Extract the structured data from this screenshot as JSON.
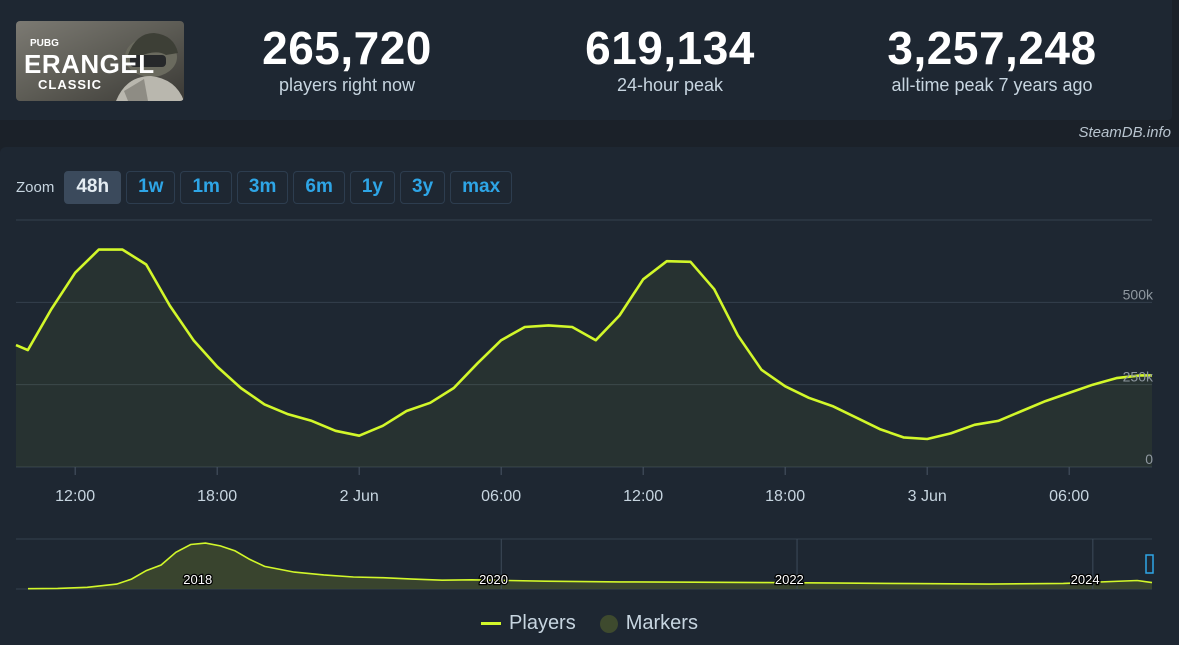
{
  "colors": {
    "accent": "#d2f72a",
    "link": "#2ea5e6",
    "background": "#1b2129",
    "panel": "#1e2732",
    "grid": "#3a4654",
    "marker": "#3e4a2e"
  },
  "game": {
    "logo_brand": "PUBG",
    "logo_title": "ERANGEL",
    "logo_subtitle": "CLASSIC"
  },
  "stats": [
    {
      "value": "265,720",
      "label": "players right now"
    },
    {
      "value": "619,134",
      "label": "24-hour peak"
    },
    {
      "value": "3,257,248",
      "label": "all-time peak 7 years ago"
    }
  ],
  "credit": "SteamDB.info",
  "zoom": {
    "label": "Zoom",
    "options": [
      "48h",
      "1w",
      "1m",
      "3m",
      "6m",
      "1y",
      "3y",
      "max"
    ],
    "selected": "48h"
  },
  "legend": {
    "players": "Players",
    "markers": "Markers"
  },
  "chart_data": [
    {
      "type": "line",
      "series": [
        {
          "name": "Players",
          "color": "#d2f72a",
          "x": [
            9.5,
            10,
            11,
            12,
            13,
            14,
            15,
            16,
            17,
            18,
            19,
            20,
            21,
            22,
            23,
            24,
            25,
            26,
            27,
            28,
            29,
            30,
            31,
            32,
            33,
            34,
            35,
            36,
            37,
            38,
            39,
            40,
            41,
            42,
            43,
            44,
            45,
            46,
            47,
            48,
            49,
            50,
            51,
            52,
            53,
            54,
            55,
            56,
            57,
            57.5
          ],
          "y": [
            370000,
            355000,
            480000,
            590000,
            660000,
            660000,
            615000,
            490000,
            385000,
            305000,
            240000,
            190000,
            160000,
            140000,
            110000,
            95000,
            125000,
            170000,
            195000,
            240000,
            315000,
            385000,
            425000,
            430000,
            425000,
            385000,
            460000,
            570000,
            625000,
            623000,
            540000,
            400000,
            295000,
            245000,
            210000,
            185000,
            150000,
            115000,
            90000,
            85000,
            102000,
            128000,
            140000,
            170000,
            200000,
            225000,
            250000,
            270000,
            278000,
            278000
          ]
        }
      ],
      "x_ticks": [
        "12:00",
        "18:00",
        "2 Jun",
        "06:00",
        "12:00",
        "18:00",
        "3 Jun",
        "06:00"
      ],
      "y_ticks": [
        "0",
        "250k",
        "500k"
      ],
      "ylim": [
        0,
        750000
      ],
      "grid": true
    },
    {
      "type": "area",
      "series": [
        {
          "name": "Players",
          "x": [
            2017.0,
            2017.2,
            2017.4,
            2017.6,
            2017.7,
            2017.8,
            2017.9,
            2018.0,
            2018.1,
            2018.2,
            2018.3,
            2018.4,
            2018.5,
            2018.6,
            2018.8,
            2019.0,
            2019.2,
            2019.4,
            2019.6,
            2019.8,
            2020.0,
            2020.5,
            2021.0,
            2021.5,
            2022.0,
            2022.5,
            2023.0,
            2023.5,
            2024.0,
            2024.5,
            2024.6
          ],
          "y": [
            20000,
            40000,
            120000,
            350000,
            700000,
            1300000,
            1700000,
            2600000,
            3150000,
            3250000,
            3050000,
            2700000,
            2100000,
            1600000,
            1200000,
            1000000,
            850000,
            800000,
            700000,
            620000,
            650000,
            550000,
            500000,
            480000,
            450000,
            420000,
            380000,
            350000,
            400000,
            600000,
            450000
          ]
        }
      ],
      "x_ticks": [
        "2018",
        "2020",
        "2022",
        "2024"
      ],
      "markers": [
        2020.2,
        2022.2,
        2024.2
      ]
    }
  ]
}
